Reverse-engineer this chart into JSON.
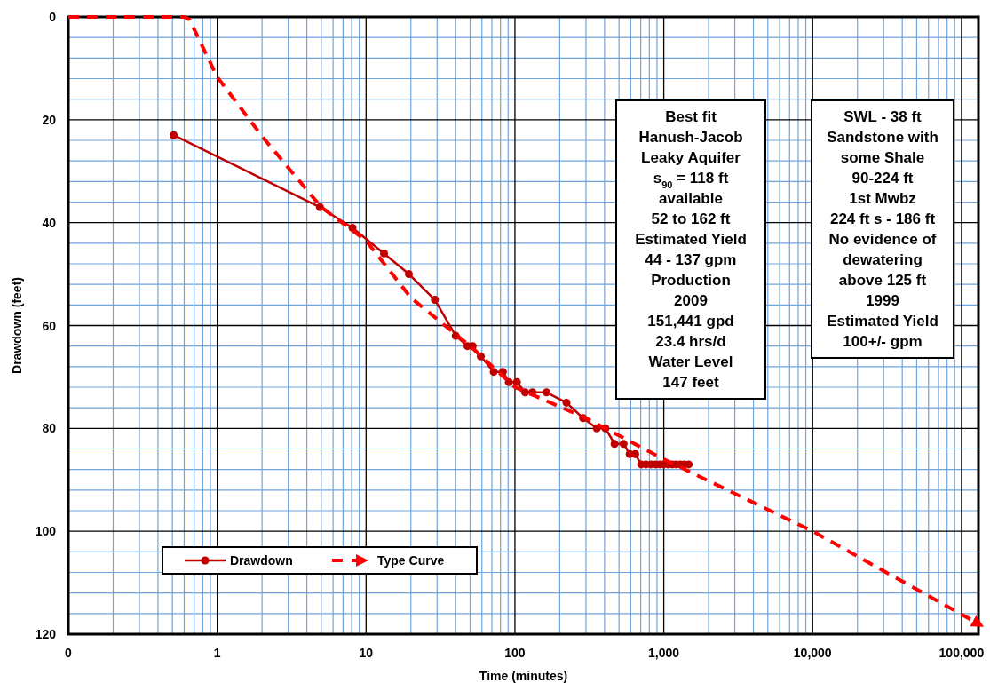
{
  "chart_data": {
    "type": "line",
    "xlabel": "Time (minutes)",
    "ylabel": "Drawdown (feet)",
    "log": "x",
    "grid": true,
    "legend": "bottom left",
    "xlim": [
      0.1,
      130000
    ],
    "xticks": [
      {
        "value": 0.1,
        "label": "0"
      },
      {
        "value": 0.2,
        "label": null
      },
      {
        "value": 0.3,
        "label": null
      },
      {
        "value": 0.4,
        "label": null
      },
      {
        "value": 0.5,
        "label": null
      },
      {
        "value": 0.6,
        "label": null
      },
      {
        "value": 0.7,
        "label": null
      },
      {
        "value": 0.8,
        "label": null
      },
      {
        "value": 0.9,
        "label": null
      },
      1,
      {
        "value": 2,
        "label": null
      },
      {
        "value": 3,
        "label": null
      },
      {
        "value": 4,
        "label": null
      },
      {
        "value": 5,
        "label": null
      },
      {
        "value": 6,
        "label": null
      },
      {
        "value": 7,
        "label": null
      },
      {
        "value": 8,
        "label": null
      },
      {
        "value": 9,
        "label": null
      },
      10,
      {
        "value": 20,
        "label": null
      },
      {
        "value": 30,
        "label": null
      },
      {
        "value": 40,
        "label": null
      },
      {
        "value": 50,
        "label": null
      },
      {
        "value": 60,
        "label": null
      },
      {
        "value": 70,
        "label": null
      },
      {
        "value": 80,
        "label": null
      },
      {
        "value": 90,
        "label": null
      },
      100,
      {
        "value": 200,
        "label": null
      },
      {
        "value": 300,
        "label": null
      },
      {
        "value": 400,
        "label": null
      },
      {
        "value": 500,
        "label": null
      },
      {
        "value": 600,
        "label": null
      },
      {
        "value": 700,
        "label": null
      },
      {
        "value": 800,
        "label": null
      },
      {
        "value": 900,
        "label": null
      },
      {
        "value": 1000,
        "label": "1,000"
      },
      {
        "value": 2000,
        "label": null
      },
      {
        "value": 3000,
        "label": null
      },
      {
        "value": 4000,
        "label": null
      },
      {
        "value": 5000,
        "label": null
      },
      {
        "value": 6000,
        "label": null
      },
      {
        "value": 7000,
        "label": null
      },
      {
        "value": 8000,
        "label": null
      },
      {
        "value": 9000,
        "label": null
      },
      {
        "value": 10000,
        "label": "10,000"
      },
      {
        "value": 20000,
        "label": null
      },
      {
        "value": 30000,
        "label": null
      },
      {
        "value": 40000,
        "label": null
      },
      {
        "value": 50000,
        "label": null
      },
      {
        "value": 60000,
        "label": null
      },
      {
        "value": 70000,
        "label": null
      },
      {
        "value": 80000,
        "label": null
      },
      {
        "value": 90000,
        "label": null
      },
      {
        "value": 100000,
        "label": "100,000"
      }
    ],
    "ylim": [
      120,
      0
    ],
    "yticks": [
      0,
      {
        "value": 4,
        "label": null
      },
      {
        "value": 8,
        "label": null
      },
      {
        "value": 12,
        "label": null
      },
      {
        "value": 16,
        "label": null
      },
      20,
      {
        "value": 24,
        "label": null
      },
      {
        "value": 28,
        "label": null
      },
      {
        "value": 32,
        "label": null
      },
      {
        "value": 36,
        "label": null
      },
      40,
      {
        "value": 44,
        "label": null
      },
      {
        "value": 48,
        "label": null
      },
      {
        "value": 52,
        "label": null
      },
      {
        "value": 56,
        "label": null
      },
      60,
      {
        "value": 64,
        "label": null
      },
      {
        "value": 68,
        "label": null
      },
      {
        "value": 72,
        "label": null
      },
      {
        "value": 76,
        "label": null
      },
      80,
      {
        "value": 84,
        "label": null
      },
      {
        "value": 88,
        "label": null
      },
      {
        "value": 92,
        "label": null
      },
      {
        "value": 96,
        "label": null
      },
      100,
      {
        "value": 104,
        "label": null
      },
      {
        "value": 108,
        "label": null
      },
      {
        "value": 112,
        "label": null
      },
      {
        "value": 116,
        "label": null
      },
      120
    ],
    "series": [
      {
        "name": "Drawdown",
        "color": "#c00000",
        "marker": "circle",
        "line_style": "solid",
        "x": [
          0.51,
          4.9,
          8.1,
          13.2,
          19.4,
          29,
          40,
          48,
          52,
          59,
          72,
          83,
          91,
          103,
          117,
          131,
          163,
          222,
          287,
          355,
          406,
          467,
          537,
          590,
          643,
          705,
          760,
          820,
          880,
          940,
          1000,
          1070,
          1140,
          1210,
          1290,
          1370,
          1470
        ],
        "values": [
          23,
          37,
          41,
          46,
          50,
          55,
          62,
          64,
          64,
          66,
          69,
          69,
          71,
          71,
          73,
          73,
          73,
          75,
          78,
          80,
          80,
          83,
          83,
          85,
          85,
          87,
          87,
          87,
          87,
          87,
          87,
          87,
          87,
          87,
          87,
          87,
          87
        ]
      },
      {
        "name": "Type Curve",
        "color": "#ff0000",
        "marker": "none",
        "line_style": "dashed",
        "x": [
          0.1,
          0.6,
          0.65,
          1,
          2,
          5,
          10,
          20,
          50,
          100,
          300,
          1000,
          10000,
          130000
        ],
        "values": [
          0,
          0,
          0.5,
          11.7,
          23.2,
          37,
          43.5,
          54.6,
          64,
          72,
          78,
          86,
          100,
          118
        ]
      }
    ],
    "annotations": [
      "Best fit\nHanush-Jacob\nLeaky Aquifer\ns$_{90}$ = 118 ft\navailable\n52 to 162 ft\nEstimated Yield\n44 - 137 gpm\nProduction\n2009\n151,441 gpd\n23.4 hrs/d\nWater Level\n147 feet",
      "SWL - 38 ft\nSandstone with\nsome Shale\n90-224 ft\n1st Mwbz\n224 ft s - 186 ft\nNo evidence of\ndewatering\nabove 125 ft\n1999\nEstimated Yield\n100+/- gpm"
    ]
  }
}
